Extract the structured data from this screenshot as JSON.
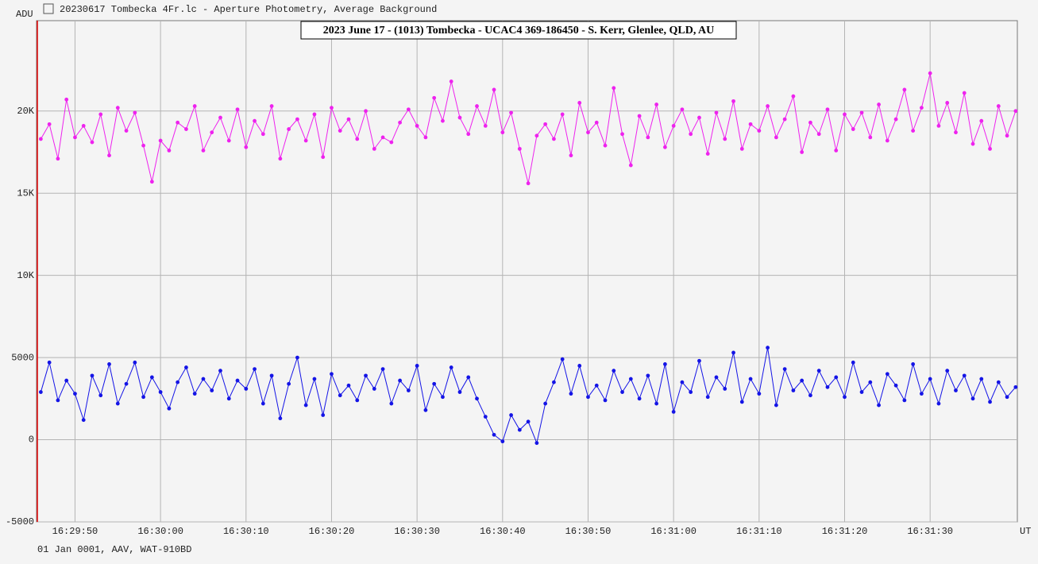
{
  "window_title": "20230617 Tombecka 4Fr.lc - Aperture Photometry, Average Background",
  "footer": "01 Jan 0001, AAV, WAT-910BD",
  "chart_data": {
    "type": "line",
    "title": "2023 June 17 - (1013) Tombecka - UCAC4 369-186450 - S. Kerr, Glenlee, QLD, AU",
    "y_label": "ADU",
    "x_label": "UT",
    "grid": true,
    "xlim": [
      59385.5,
      59500.2
    ],
    "ylim": [
      -5000,
      25500
    ],
    "xticks": [
      {
        "value": 59390,
        "label": "16:29:50"
      },
      {
        "value": 59400,
        "label": "16:30:00"
      },
      {
        "value": 59410,
        "label": "16:30:10"
      },
      {
        "value": 59420,
        "label": "16:30:20"
      },
      {
        "value": 59430,
        "label": "16:30:30"
      },
      {
        "value": 59440,
        "label": "16:30:40"
      },
      {
        "value": 59450,
        "label": "16:30:50"
      },
      {
        "value": 59460,
        "label": "16:31:00"
      },
      {
        "value": 59470,
        "label": "16:31:10"
      },
      {
        "value": 59480,
        "label": "16:31:20"
      },
      {
        "value": 59490,
        "label": "16:31:30"
      }
    ],
    "yticks": [
      -5000,
      0,
      5000,
      {
        "value": 10000,
        "label": "10K"
      },
      {
        "value": 15000,
        "label": "15K"
      },
      {
        "value": 20000,
        "label": "20K"
      }
    ],
    "x": [
      59386,
      59387,
      59388,
      59389,
      59390,
      59391,
      59392,
      59393,
      59394,
      59395,
      59396,
      59397,
      59398,
      59399,
      59400,
      59401,
      59402,
      59403,
      59404,
      59405,
      59406,
      59407,
      59408,
      59409,
      59410,
      59411,
      59412,
      59413,
      59414,
      59415,
      59416,
      59417,
      59418,
      59419,
      59420,
      59421,
      59422,
      59423,
      59424,
      59425,
      59426,
      59427,
      59428,
      59429,
      59430,
      59431,
      59432,
      59433,
      59434,
      59435,
      59436,
      59437,
      59438,
      59439,
      59440,
      59441,
      59442,
      59443,
      59444,
      59445,
      59446,
      59447,
      59448,
      59449,
      59450,
      59451,
      59452,
      59453,
      59454,
      59455,
      59456,
      59457,
      59458,
      59459,
      59460,
      59461,
      59462,
      59463,
      59464,
      59465,
      59466,
      59467,
      59468,
      59469,
      59470,
      59471,
      59472,
      59473,
      59474,
      59475,
      59476,
      59477,
      59478,
      59479,
      59480,
      59481,
      59482,
      59483,
      59484,
      59485,
      59486,
      59487,
      59488,
      59489,
      59490,
      59491,
      59492,
      59493,
      59494,
      59495,
      59496,
      59497,
      59498,
      59499,
      59500
    ],
    "series": [
      {
        "color": "#ee22ee",
        "values": [
          18300,
          19200,
          17100,
          20700,
          18400,
          19100,
          18100,
          19800,
          17300,
          20200,
          18800,
          19900,
          17900,
          15700,
          18200,
          17600,
          19300,
          18900,
          20300,
          17600,
          18700,
          19600,
          18200,
          20100,
          17800,
          19400,
          18600,
          20300,
          17100,
          18900,
          19500,
          18200,
          19800,
          17200,
          20200,
          18800,
          19500,
          18300,
          20000,
          17700,
          18400,
          18100,
          19300,
          20100,
          19100,
          18400,
          20800,
          19400,
          21800,
          19600,
          18600,
          20300,
          19100,
          21300,
          18700,
          19900,
          17700,
          15600,
          18500,
          19200,
          18300,
          19800,
          17300,
          20500,
          18700,
          19300,
          17900,
          21400,
          18600,
          16700,
          19700,
          18400,
          20400,
          17800,
          19100,
          20100,
          18600,
          19600,
          17400,
          19900,
          18300,
          20600,
          17700,
          19200,
          18800,
          20300,
          18400,
          19500,
          20900,
          17500,
          19300,
          18600,
          20100,
          17600,
          19800,
          18900,
          19900,
          18400,
          20400,
          18200,
          19500,
          21300,
          18800,
          20200,
          22300,
          19100,
          20500,
          18700,
          21100,
          18000,
          19400,
          17700,
          20300,
          18500,
          20000
        ]
      },
      {
        "color": "#1414e6",
        "values": [
          2900,
          4700,
          2400,
          3600,
          2800,
          1200,
          3900,
          2700,
          4600,
          2200,
          3400,
          4700,
          2600,
          3800,
          2900,
          1900,
          3500,
          4400,
          2800,
          3700,
          3000,
          4200,
          2500,
          3600,
          3100,
          4300,
          2200,
          3900,
          1300,
          3400,
          5000,
          2100,
          3700,
          1500,
          4000,
          2700,
          3300,
          2400,
          3900,
          3100,
          4300,
          2200,
          3600,
          3000,
          4500,
          1800,
          3400,
          2600,
          4400,
          2900,
          3800,
          2500,
          1400,
          300,
          -100,
          1500,
          600,
          1100,
          -200,
          2200,
          3500,
          4900,
          2800,
          4500,
          2600,
          3300,
          2400,
          4200,
          2900,
          3700,
          2500,
          3900,
          2200,
          4600,
          1700,
          3500,
          2900,
          4800,
          2600,
          3800,
          3100,
          5300,
          2300,
          3700,
          2800,
          5600,
          2100,
          4300,
          3000,
          3600,
          2700,
          4200,
          3200,
          3800,
          2600,
          4700,
          2900,
          3500,
          2100,
          4000,
          3300,
          2400,
          4600,
          2800,
          3700,
          2200,
          4200,
          3000,
          3900,
          2500,
          3700,
          2300,
          3500,
          2600,
          3200
        ]
      }
    ]
  }
}
